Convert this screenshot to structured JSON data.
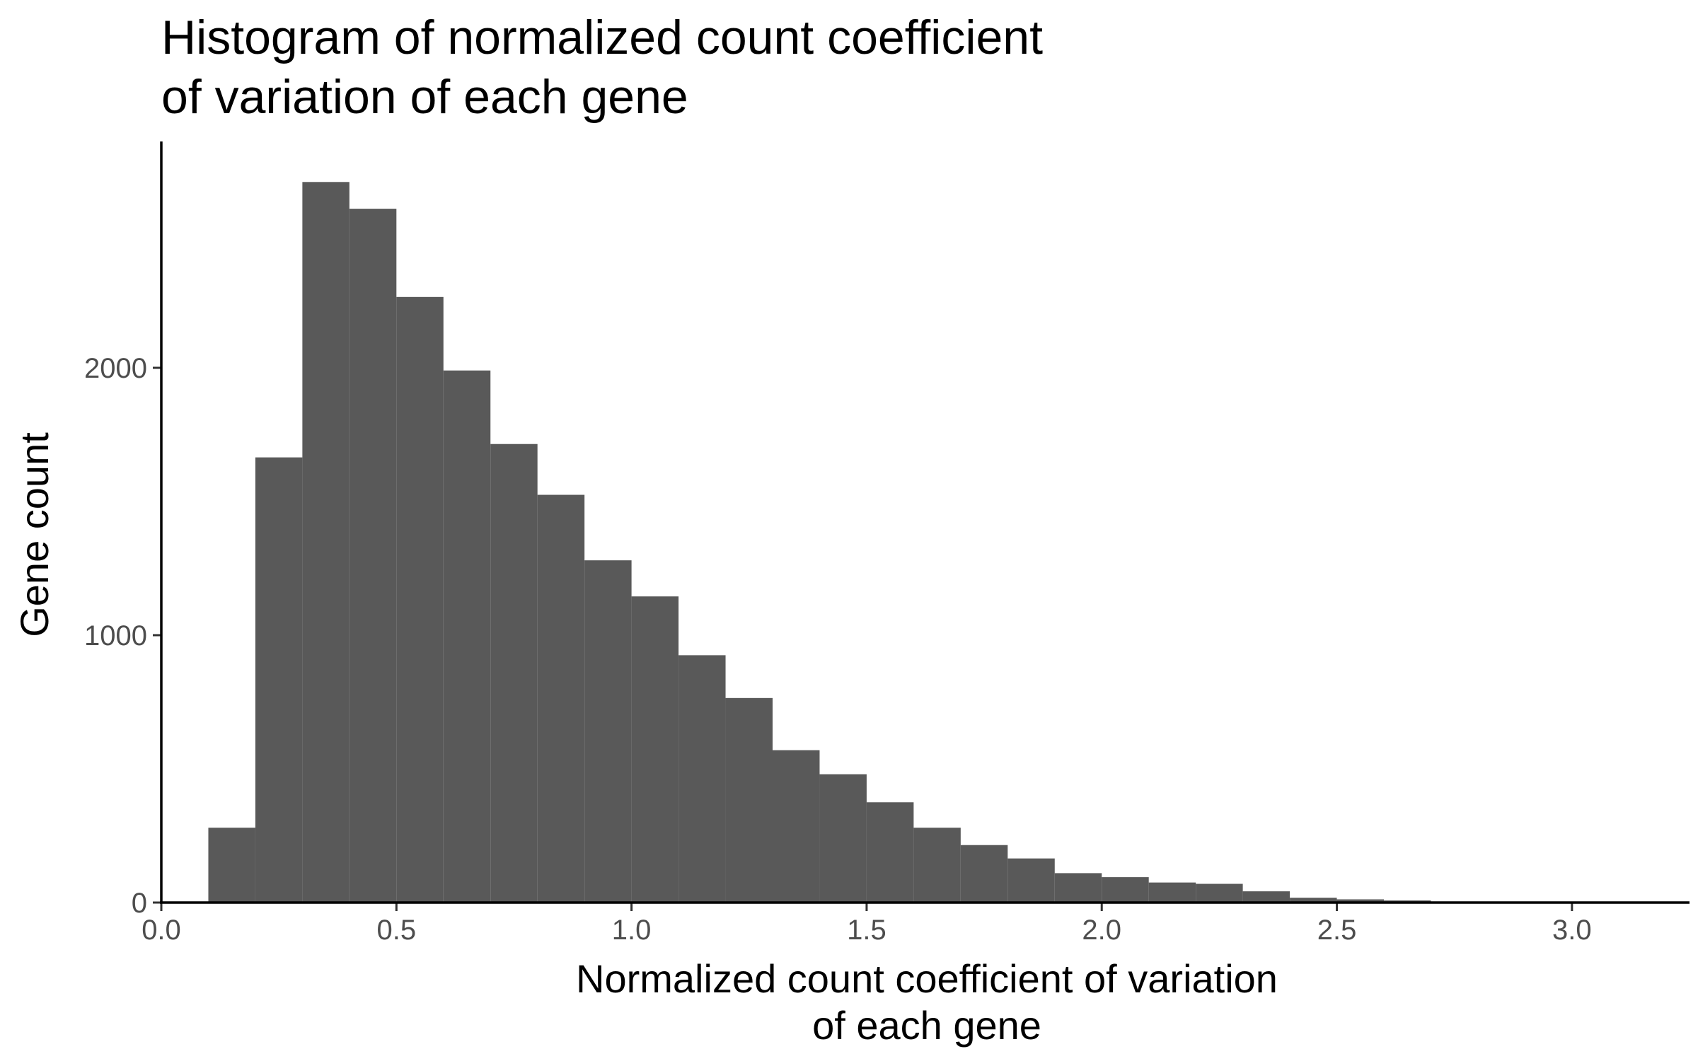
{
  "chart_data": {
    "type": "bar",
    "title": "Histogram of normalized count coefficient of variation of each gene",
    "title_lines": [
      "Histogram of normalized count coefficient",
      "of variation of each gene"
    ],
    "xlabel": "Normalized count coefficient of variation of each gene",
    "xlabel_lines": [
      "Normalized count coefficient of variation",
      "of each gene"
    ],
    "ylabel": "Gene count",
    "xlim": [
      0.0,
      3.25
    ],
    "ylim": [
      0,
      2800
    ],
    "x_ticks": [
      {
        "value": 0.0,
        "label": "0.0"
      },
      {
        "value": 0.5,
        "label": "0.5"
      },
      {
        "value": 1.0,
        "label": "1.0"
      },
      {
        "value": 1.5,
        "label": "1.5"
      },
      {
        "value": 2.0,
        "label": "2.0"
      },
      {
        "value": 2.5,
        "label": "2.5"
      },
      {
        "value": 3.0,
        "label": "3.0"
      }
    ],
    "y_ticks": [
      {
        "value": 0,
        "label": "0"
      },
      {
        "value": 1000,
        "label": "1000"
      },
      {
        "value": 2000,
        "label": "2000"
      }
    ],
    "bin_width": 0.1,
    "bins": [
      {
        "x0": 0.1,
        "x1": 0.2,
        "count": 280
      },
      {
        "x0": 0.2,
        "x1": 0.3,
        "count": 1665
      },
      {
        "x0": 0.3,
        "x1": 0.4,
        "count": 2695
      },
      {
        "x0": 0.4,
        "x1": 0.5,
        "count": 2595
      },
      {
        "x0": 0.5,
        "x1": 0.6,
        "count": 2265
      },
      {
        "x0": 0.6,
        "x1": 0.7,
        "count": 1990
      },
      {
        "x0": 0.7,
        "x1": 0.8,
        "count": 1715
      },
      {
        "x0": 0.8,
        "x1": 0.9,
        "count": 1525
      },
      {
        "x0": 0.9,
        "x1": 1.0,
        "count": 1280
      },
      {
        "x0": 1.0,
        "x1": 1.1,
        "count": 1145
      },
      {
        "x0": 1.1,
        "x1": 1.2,
        "count": 925
      },
      {
        "x0": 1.2,
        "x1": 1.3,
        "count": 765
      },
      {
        "x0": 1.3,
        "x1": 1.4,
        "count": 570
      },
      {
        "x0": 1.4,
        "x1": 1.5,
        "count": 480
      },
      {
        "x0": 1.5,
        "x1": 1.6,
        "count": 375
      },
      {
        "x0": 1.6,
        "x1": 1.7,
        "count": 280
      },
      {
        "x0": 1.7,
        "x1": 1.8,
        "count": 215
      },
      {
        "x0": 1.8,
        "x1": 1.9,
        "count": 165
      },
      {
        "x0": 1.9,
        "x1": 2.0,
        "count": 110
      },
      {
        "x0": 2.0,
        "x1": 2.1,
        "count": 95
      },
      {
        "x0": 2.1,
        "x1": 2.2,
        "count": 75
      },
      {
        "x0": 2.2,
        "x1": 2.3,
        "count": 70
      },
      {
        "x0": 2.3,
        "x1": 2.4,
        "count": 42
      },
      {
        "x0": 2.4,
        "x1": 2.5,
        "count": 18
      },
      {
        "x0": 2.5,
        "x1": 2.6,
        "count": 12
      },
      {
        "x0": 2.6,
        "x1": 2.7,
        "count": 8
      },
      {
        "x0": 2.7,
        "x1": 2.8,
        "count": 4
      },
      {
        "x0": 2.8,
        "x1": 2.9,
        "count": 3
      },
      {
        "x0": 2.9,
        "x1": 3.0,
        "count": 2
      },
      {
        "x0": 3.0,
        "x1": 3.1,
        "count": 1
      },
      {
        "x0": 3.1,
        "x1": 3.2,
        "count": 1
      }
    ],
    "bar_color": "#595959",
    "background_color": "#ffffff",
    "axis_color": "#000000",
    "tick_label_color": "#4d4d4d",
    "grid": false,
    "legend": "none"
  }
}
